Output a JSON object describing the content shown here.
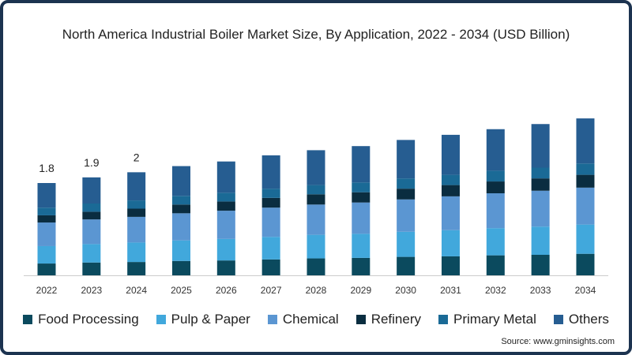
{
  "chart_data": {
    "type": "bar",
    "stacked": true,
    "title": "North America Industrial Boiler Market Size, By Application, 2022 - 2034 (USD Billion)",
    "xlabel": "",
    "ylabel": "",
    "ylim": [
      0,
      3.2
    ],
    "grid": false,
    "legend_placement": "bottom",
    "categories": [
      "2022",
      "2023",
      "2024",
      "2025",
      "2026",
      "2027",
      "2028",
      "2029",
      "2030",
      "2031",
      "2032",
      "2033",
      "2034"
    ],
    "series": [
      {
        "name": "Food Processing",
        "color": "#0b4a5e",
        "values": [
          0.23,
          0.25,
          0.26,
          0.28,
          0.29,
          0.31,
          0.33,
          0.34,
          0.36,
          0.37,
          0.39,
          0.4,
          0.42
        ]
      },
      {
        "name": "Pulp & Paper",
        "color": "#41a8dc",
        "values": [
          0.34,
          0.36,
          0.38,
          0.4,
          0.42,
          0.44,
          0.46,
          0.47,
          0.49,
          0.51,
          0.53,
          0.55,
          0.57
        ]
      },
      {
        "name": "Chemical",
        "color": "#5b96d2",
        "values": [
          0.46,
          0.48,
          0.5,
          0.53,
          0.55,
          0.57,
          0.59,
          0.61,
          0.63,
          0.66,
          0.68,
          0.7,
          0.72
        ]
      },
      {
        "name": "Refinery",
        "color": "#0a2d40",
        "values": [
          0.14,
          0.15,
          0.16,
          0.17,
          0.18,
          0.19,
          0.2,
          0.2,
          0.21,
          0.22,
          0.23,
          0.24,
          0.25
        ]
      },
      {
        "name": "Primary Metal",
        "color": "#1a6a96",
        "values": [
          0.15,
          0.16,
          0.16,
          0.17,
          0.17,
          0.18,
          0.18,
          0.19,
          0.2,
          0.2,
          0.21,
          0.21,
          0.22
        ]
      },
      {
        "name": "Others",
        "color": "#265d91",
        "values": [
          0.48,
          0.51,
          0.55,
          0.58,
          0.61,
          0.65,
          0.68,
          0.71,
          0.75,
          0.78,
          0.81,
          0.85,
          0.88
        ]
      }
    ],
    "data_labels": [
      "1.8",
      "1.9",
      "2"
    ]
  },
  "source": "Source: www.gminsights.com"
}
